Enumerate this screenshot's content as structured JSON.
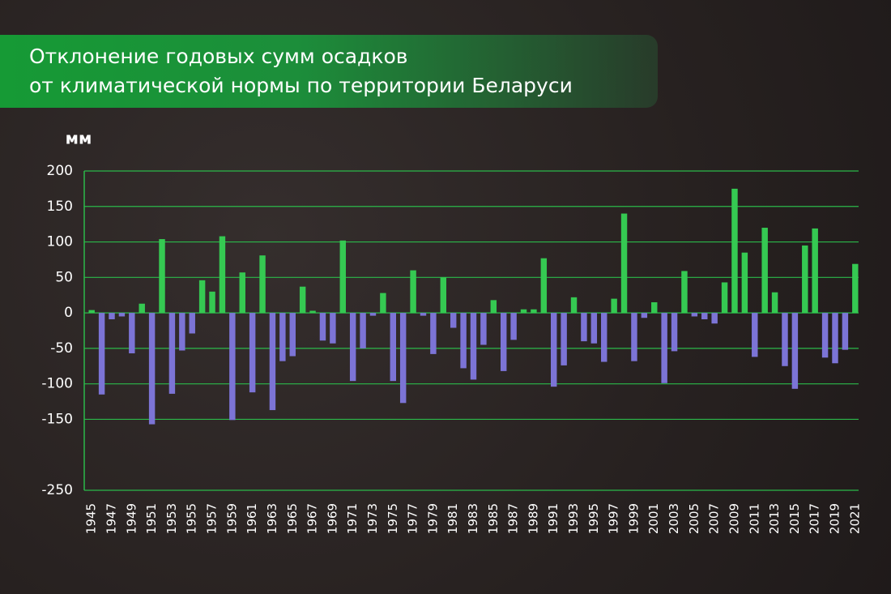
{
  "chart_data": {
    "type": "bar",
    "title": [
      "Отклонение годовых сумм осадков",
      "от климатической нормы по территории Беларуси"
    ],
    "y_label": "мм",
    "categories": [
      "1945",
      null,
      "1947",
      null,
      "1949",
      null,
      "1951",
      null,
      "1953",
      null,
      "1955",
      null,
      "1957",
      null,
      "1959",
      null,
      "1961",
      null,
      "1963",
      null,
      "1965",
      null,
      "1967",
      null,
      "1969",
      null,
      "1971",
      null,
      "1973",
      null,
      "1975",
      null,
      "1977",
      null,
      "1979",
      null,
      "1981",
      null,
      "1983",
      null,
      "1985",
      null,
      "1987",
      null,
      "1989",
      null,
      "1991",
      null,
      "1993",
      null,
      "1995",
      null,
      "1997",
      null,
      "1999",
      null,
      "2001",
      null,
      "2003",
      null,
      "2005",
      null,
      "2007",
      null,
      "2009",
      null,
      "2011",
      null,
      "2013",
      null,
      "2015",
      null,
      "2017",
      null,
      "2019",
      null,
      "2021"
    ],
    "values": [
      4,
      -115,
      -9,
      -5,
      -57,
      13,
      -157,
      104,
      -114,
      -53,
      -29,
      46,
      30,
      108,
      -151,
      57,
      -112,
      81,
      -137,
      -68,
      -61,
      37,
      3,
      -39,
      -43,
      102,
      -96,
      -50,
      -4,
      28,
      -96,
      -127,
      60,
      -4,
      -58,
      50,
      -21,
      -78,
      -94,
      -45,
      18,
      -82,
      -38,
      5,
      5,
      77,
      -104,
      -74,
      22,
      -40,
      -43,
      -69,
      20,
      140,
      -68,
      -7,
      15,
      -99,
      -54,
      59,
      -5,
      -9,
      -15,
      43,
      175,
      85,
      -62,
      120,
      29,
      -75,
      -107,
      95,
      119,
      -63,
      -71,
      -52,
      69
    ],
    "positive_color": "#35c952",
    "negative_color": "#7c74d6",
    "grid_color": "#2bb94a",
    "ylim": [
      -250,
      200
    ],
    "yticks": [
      -250,
      -150,
      -100,
      -50,
      0,
      50,
      100,
      150,
      200
    ],
    "grid": true
  }
}
